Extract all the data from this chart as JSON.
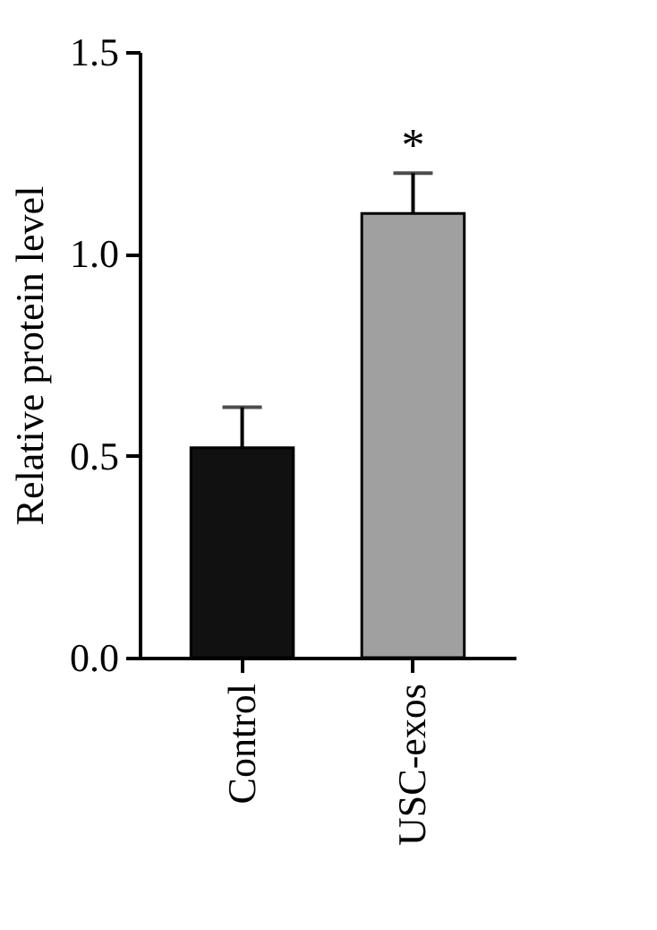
{
  "chart_data": {
    "type": "bar",
    "ylabel": "Relative protein level",
    "categories": [
      "Control",
      "USC-exos"
    ],
    "values": [
      0.52,
      1.1
    ],
    "colors": [
      "#111111",
      "#a0a0a0"
    ],
    "errors": [
      [
        0.52,
        0.62
      ],
      [
        1.1,
        1.2
      ]
    ],
    "ylim": [
      0,
      1.5
    ],
    "yticks": [
      {
        "value": 0,
        "label": "0.0"
      },
      0.5,
      {
        "value": 1,
        "label": "1.0"
      },
      1.5
    ],
    "annotations": [
      "*"
    ],
    "grid": false,
    "legend": false
  }
}
